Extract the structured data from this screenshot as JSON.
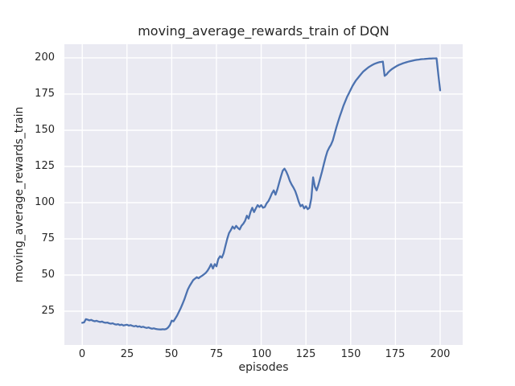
{
  "chart_data": {
    "type": "line",
    "title": "moving_average_rewards_train of DQN",
    "xlabel": "episodes",
    "ylabel": "moving_average_rewards_train",
    "x_ticks": [
      0,
      25,
      50,
      75,
      100,
      125,
      150,
      175,
      200
    ],
    "y_ticks": [
      25,
      50,
      75,
      100,
      125,
      150,
      175,
      200
    ],
    "xlim": [
      -10.0,
      212.6
    ],
    "ylim": [
      1.7,
      209.4
    ],
    "grid": true,
    "legend_position": "none",
    "line_color": "#4c72b0",
    "plot_background_color": "#eaeaf2",
    "grid_color": "#ffffff",
    "text_color": "#262626",
    "figure_background_color": "#ffffff",
    "series": [
      {
        "name": "moving_average_rewards_train",
        "x": [
          0,
          1,
          2,
          3,
          4,
          5,
          6,
          7,
          8,
          9,
          10,
          11,
          12,
          13,
          14,
          15,
          16,
          17,
          18,
          19,
          20,
          21,
          22,
          23,
          24,
          25,
          26,
          27,
          28,
          29,
          30,
          31,
          32,
          33,
          34,
          35,
          36,
          37,
          38,
          39,
          40,
          41,
          42,
          43,
          44,
          45,
          46,
          47,
          48,
          49,
          50,
          51,
          52,
          53,
          54,
          55,
          56,
          57,
          58,
          59,
          60,
          61,
          62,
          63,
          64,
          65,
          66,
          67,
          68,
          69,
          70,
          71,
          72,
          73,
          74,
          75,
          76,
          77,
          78,
          79,
          80,
          81,
          82,
          83,
          84,
          85,
          86,
          87,
          88,
          89,
          90,
          91,
          92,
          93,
          94,
          95,
          96,
          97,
          98,
          99,
          100,
          101,
          102,
          103,
          104,
          105,
          106,
          107,
          108,
          109,
          110,
          111,
          112,
          113,
          114,
          115,
          116,
          117,
          118,
          119,
          120,
          121,
          122,
          123,
          124,
          125,
          126,
          127,
          128,
          129,
          130,
          131,
          132,
          133,
          134,
          135,
          136,
          137,
          138,
          139,
          140,
          141,
          142,
          143,
          144,
          145,
          146,
          147,
          148,
          149,
          150,
          151,
          152,
          153,
          154,
          155,
          156,
          157,
          158,
          159,
          160,
          161,
          162,
          163,
          164,
          165,
          166,
          167,
          168,
          169,
          170,
          171,
          172,
          173,
          174,
          175,
          176,
          177,
          178,
          179,
          180,
          181,
          182,
          183,
          184,
          185,
          186,
          187,
          188,
          189,
          190,
          191,
          192,
          193,
          194,
          195,
          196,
          197,
          198,
          199,
          200
        ],
        "y": [
          17.0,
          17.3,
          19.5,
          19.2,
          18.7,
          19.0,
          18.4,
          18.1,
          18.4,
          17.9,
          17.6,
          17.9,
          17.3,
          17.0,
          17.2,
          16.7,
          16.4,
          16.7,
          16.1,
          15.8,
          16.1,
          15.5,
          15.8,
          15.2,
          15.5,
          15.7,
          15.1,
          15.4,
          14.9,
          14.6,
          14.9,
          14.3,
          14.6,
          14.0,
          14.3,
          13.8,
          13.5,
          13.8,
          13.3,
          13.0,
          13.2,
          12.8,
          12.6,
          12.5,
          12.4,
          12.6,
          12.5,
          12.8,
          13.8,
          15.5,
          18.5,
          18.0,
          20.0,
          22.0,
          24.5,
          27.0,
          30.0,
          33.0,
          36.5,
          40.0,
          42.5,
          44.5,
          46.5,
          47.5,
          48.5,
          47.8,
          48.8,
          49.5,
          50.5,
          51.5,
          53.0,
          55.0,
          57.5,
          54.5,
          57.5,
          56.0,
          61.0,
          63.0,
          62.0,
          65.0,
          70.0,
          75.0,
          79.0,
          81.0,
          83.5,
          82.0,
          84.0,
          82.5,
          81.5,
          84.0,
          85.5,
          87.5,
          91.0,
          89.0,
          93.5,
          96.5,
          93.5,
          96.0,
          98.3,
          97.0,
          98.3,
          96.5,
          97.0,
          99.5,
          101.0,
          103.5,
          106.5,
          108.5,
          105.5,
          109.0,
          113.5,
          118.0,
          122.0,
          123.5,
          121.5,
          118.5,
          115.0,
          112.5,
          110.5,
          108.0,
          104.5,
          100.5,
          97.5,
          98.5,
          96.0,
          97.5,
          95.5,
          96.5,
          103.0,
          117.5,
          111.0,
          108.5,
          112.5,
          117.0,
          121.5,
          126.5,
          131.5,
          135.5,
          138.0,
          140.0,
          143.0,
          147.5,
          152.0,
          156.0,
          160.0,
          163.5,
          167.0,
          170.0,
          173.0,
          175.5,
          178.0,
          180.5,
          182.5,
          184.5,
          186.0,
          187.5,
          189.0,
          190.5,
          191.5,
          192.5,
          193.5,
          194.3,
          195.0,
          195.7,
          196.2,
          196.6,
          197.0,
          197.2,
          197.4,
          187.5,
          188.5,
          190.0,
          191.2,
          192.2,
          193.0,
          193.8,
          194.5,
          195.1,
          195.6,
          196.1,
          196.5,
          196.9,
          197.3,
          197.6,
          197.9,
          198.2,
          198.4,
          198.6,
          198.8,
          199.0,
          199.1,
          199.2,
          199.3,
          199.4,
          199.5,
          199.5,
          199.6,
          199.6,
          199.7,
          188.0,
          177.5
        ]
      }
    ]
  }
}
